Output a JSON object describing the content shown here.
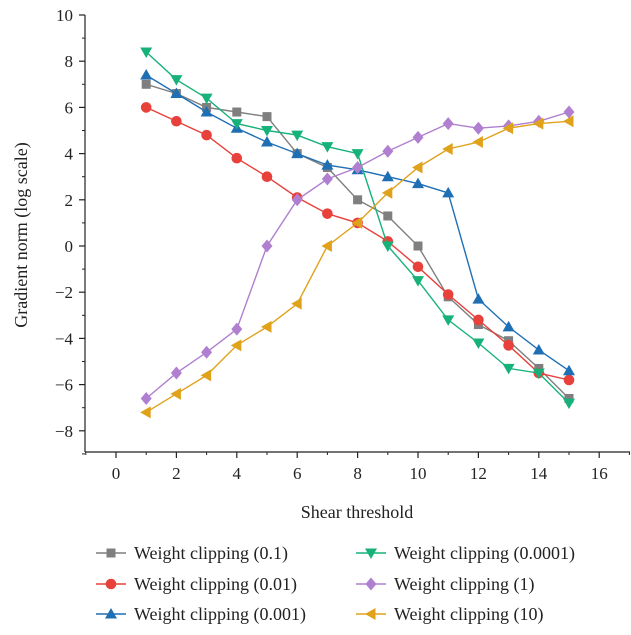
{
  "chart_data": {
    "type": "line",
    "xlabel": "Shear threshold",
    "ylabel": "Gradient norm (log scale)",
    "xlim": [
      -1,
      17
    ],
    "ylim": [
      -9,
      10
    ],
    "xticks": [
      0,
      2,
      4,
      6,
      8,
      10,
      12,
      14,
      16
    ],
    "yticks": [
      10,
      8,
      6,
      4,
      2,
      0,
      -2,
      -4,
      -6,
      -8
    ],
    "ytick_labels": [
      "10",
      "8",
      "6",
      "4",
      "2",
      "0",
      "−2",
      "−4",
      "−6",
      "−8"
    ],
    "grid": false,
    "legend_position": "bottom",
    "x": [
      1,
      2,
      3,
      4,
      5,
      6,
      7,
      8,
      9,
      10,
      11,
      12,
      13,
      14,
      15
    ],
    "series": [
      {
        "name": "Weight clipping (0.1)",
        "color": "#7f7f7f",
        "marker": "square",
        "values": [
          7.0,
          6.6,
          6.0,
          5.8,
          5.6,
          4.0,
          3.4,
          2.0,
          1.3,
          0.0,
          -2.2,
          -3.4,
          -4.1,
          -5.3,
          -6.6
        ]
      },
      {
        "name": "Weight clipping (0.01)",
        "color": "#e8403a",
        "marker": "circle",
        "values": [
          6.0,
          5.4,
          4.8,
          3.8,
          3.0,
          2.1,
          1.4,
          1.0,
          0.2,
          -0.9,
          -2.1,
          -3.2,
          -4.3,
          -5.5,
          -5.8
        ]
      },
      {
        "name": "Weight clipping (0.001)",
        "color": "#1f6fb5",
        "marker": "triangle-up",
        "values": [
          7.4,
          6.6,
          5.8,
          5.1,
          4.5,
          4.0,
          3.5,
          3.3,
          3.0,
          2.7,
          2.3,
          -2.3,
          -3.5,
          -4.5,
          -5.4
        ]
      },
      {
        "name": "Weight clipping (0.0001)",
        "color": "#17b27a",
        "marker": "triangle-down",
        "values": [
          8.4,
          7.2,
          6.4,
          5.3,
          5.0,
          4.8,
          4.3,
          4.0,
          0.0,
          -1.5,
          -3.2,
          -4.2,
          -5.3,
          -5.5,
          -6.8
        ]
      },
      {
        "name": "Weight clipping (1)",
        "color": "#b07fd0",
        "marker": "diamond",
        "values": [
          -6.6,
          -5.5,
          -4.6,
          -3.6,
          0.0,
          2.0,
          2.9,
          3.4,
          4.1,
          4.7,
          5.3,
          5.1,
          5.2,
          5.4,
          5.8
        ]
      },
      {
        "name": "Weight clipping (10)",
        "color": "#e0a21a",
        "marker": "triangle-left",
        "values": [
          -7.2,
          -6.4,
          -5.6,
          -4.3,
          -3.5,
          -2.5,
          0.0,
          1.0,
          2.3,
          3.4,
          4.2,
          4.5,
          5.1,
          5.3,
          5.4
        ]
      }
    ]
  }
}
